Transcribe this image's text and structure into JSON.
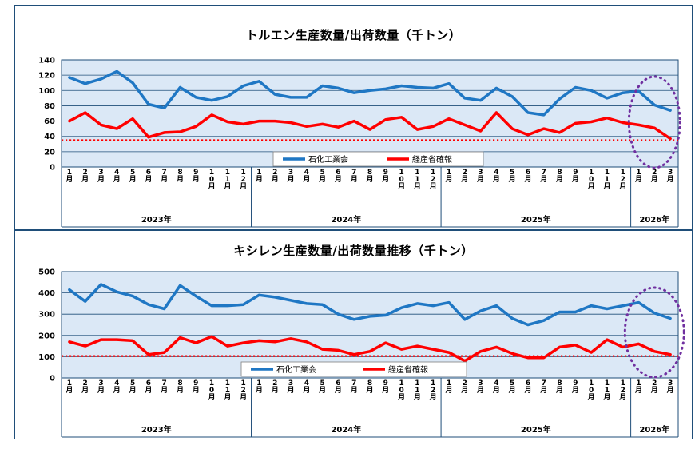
{
  "chart_data": [
    {
      "type": "line",
      "title": "トルエン生産数量/出荷数量（千トン）",
      "ylim": [
        0,
        140
      ],
      "yticks": [
        0,
        20,
        40,
        60,
        80,
        100,
        120,
        140
      ],
      "grid": true,
      "legend_position": "bottom-center",
      "months": [
        "1月",
        "2月",
        "3月",
        "4月",
        "5月",
        "6月",
        "7月",
        "8月",
        "9月",
        "10月",
        "11月",
        "12月",
        "1月",
        "2月",
        "3月",
        "4月",
        "5月",
        "6月",
        "7月",
        "8月",
        "9月",
        "10月",
        "11月",
        "12月",
        "1月",
        "2月",
        "3月",
        "4月",
        "5月",
        "6月",
        "7月",
        "8月",
        "9月",
        "10月",
        "11月",
        "12月",
        "1月",
        "2月",
        "3月"
      ],
      "years": [
        {
          "label": "2023年",
          "count": 12
        },
        {
          "label": "2024年",
          "count": 12
        },
        {
          "label": "2025年",
          "count": 12
        },
        {
          "label": "2026年",
          "count": 3
        }
      ],
      "series": [
        {
          "name": "石化工業会",
          "color": "#1f77c4",
          "values": [
            117,
            109,
            115,
            125,
            110,
            82,
            77,
            104,
            91,
            87,
            92,
            106,
            112,
            95,
            91,
            91,
            106,
            103,
            97,
            100,
            102,
            106,
            104,
            103,
            109,
            90,
            87,
            103,
            92,
            71,
            68,
            89,
            104,
            100,
            90,
            97,
            99,
            81,
            74
          ]
        },
        {
          "name": "経産省確報",
          "color": "#ff0000",
          "values": [
            60,
            71,
            55,
            50,
            63,
            39,
            45,
            46,
            53,
            68,
            59,
            56,
            60,
            60,
            58,
            53,
            56,
            52,
            60,
            49,
            62,
            65,
            49,
            53,
            63,
            55,
            47,
            71,
            50,
            42,
            50,
            45,
            57,
            59,
            64,
            58,
            55,
            51,
            37
          ]
        }
      ],
      "reference_line": {
        "value": 35,
        "color": "#ff0000"
      },
      "highlight_color": "#7030a0"
    },
    {
      "type": "line",
      "title": "キシレン生産数量/出荷数量推移（千トン）",
      "ylim": [
        0,
        500
      ],
      "yticks": [
        0,
        100,
        200,
        300,
        400,
        500
      ],
      "grid": true,
      "legend_position": "bottom-center",
      "months": [
        "1月",
        "2月",
        "3月",
        "4月",
        "5月",
        "6月",
        "7月",
        "8月",
        "9月",
        "10月",
        "11月",
        "12月",
        "1月",
        "2月",
        "3月",
        "4月",
        "5月",
        "6月",
        "7月",
        "8月",
        "9月",
        "10月",
        "11月",
        "12月",
        "1月",
        "2月",
        "3月",
        "4月",
        "5月",
        "6月",
        "7月",
        "8月",
        "9月",
        "10月",
        "11月",
        "12月",
        "1月",
        "2月",
        "3月"
      ],
      "years": [
        {
          "label": "2023年",
          "count": 12
        },
        {
          "label": "2024年",
          "count": 12
        },
        {
          "label": "2025年",
          "count": 12
        },
        {
          "label": "2026年",
          "count": 3
        }
      ],
      "series": [
        {
          "name": "石化工業会",
          "color": "#1f77c4",
          "values": [
            415,
            360,
            440,
            405,
            385,
            345,
            325,
            435,
            385,
            340,
            340,
            345,
            390,
            380,
            365,
            350,
            345,
            300,
            275,
            290,
            295,
            330,
            350,
            340,
            355,
            275,
            315,
            340,
            280,
            250,
            270,
            310,
            310,
            340,
            325,
            340,
            355,
            305,
            280
          ]
        },
        {
          "name": "経産省確報",
          "color": "#ff0000",
          "values": [
            170,
            150,
            180,
            180,
            175,
            110,
            120,
            190,
            165,
            195,
            150,
            165,
            175,
            170,
            185,
            170,
            135,
            130,
            110,
            125,
            165,
            135,
            150,
            135,
            120,
            80,
            125,
            145,
            115,
            95,
            95,
            145,
            155,
            120,
            180,
            145,
            160,
            125,
            110
          ]
        }
      ],
      "reference_line": {
        "value": 103,
        "color": "#ff0000"
      },
      "highlight_color": "#7030a0"
    }
  ]
}
